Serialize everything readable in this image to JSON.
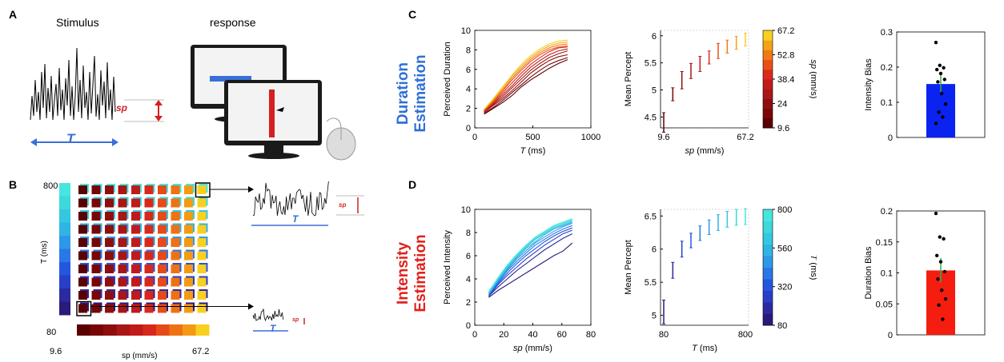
{
  "panel_letters": {
    "a": "A",
    "b": "B",
    "c": "C",
    "d": "D"
  },
  "panelA": {
    "stimulus_title": "Stimulus",
    "response_title": "response",
    "sp_label": "sp",
    "t_label": "T"
  },
  "panelB": {
    "y_axis_label": "T (ms)",
    "x_axis_label": "sp (mm/s)",
    "y_top": "800",
    "y_bottom": "80",
    "x_left": "9.6",
    "x_right": "67.2",
    "sp_label": "sp",
    "t_label": "T"
  },
  "row_labels": {
    "duration_line1": "Duration",
    "duration_line2": "Estimation",
    "intensity_line1": "Intensity",
    "intensity_line2": "Estimation"
  },
  "colors": {
    "duration_title": "#2f6fd6",
    "intensity_title": "#e0201c",
    "arrow_blue": "#3a6fd8",
    "sp_red": "#d42020",
    "bar_blue": "#0a23f0",
    "bar_red": "#f51c10"
  },
  "chart_data": [
    {
      "id": "C-left",
      "type": "line",
      "xlabel": "T (ms)",
      "ylabel": "Perceived Duration",
      "xlim": [
        0,
        1000
      ],
      "ylim": [
        0,
        10
      ],
      "xticks": [
        0,
        500,
        1000
      ],
      "yticks": [
        0,
        2,
        4,
        6,
        8,
        10
      ],
      "x": [
        80,
        160,
        240,
        320,
        400,
        480,
        560,
        640,
        720,
        800
      ],
      "series": [
        {
          "values": [
            1.4,
            2.0,
            2.6,
            3.3,
            4.2,
            4.9,
            5.5,
            6.1,
            6.6,
            7.0
          ],
          "color": "#5a0000"
        },
        {
          "values": [
            1.5,
            2.1,
            2.8,
            3.6,
            4.4,
            5.2,
            5.9,
            6.5,
            6.9,
            7.2
          ],
          "color": "#7a0808"
        },
        {
          "values": [
            1.6,
            2.3,
            3.0,
            3.8,
            4.7,
            5.6,
            6.3,
            6.9,
            7.3,
            7.5
          ],
          "color": "#8c1010"
        },
        {
          "values": [
            1.6,
            2.4,
            3.2,
            4.1,
            5.0,
            5.9,
            6.6,
            7.2,
            7.6,
            7.9
          ],
          "color": "#a81818"
        },
        {
          "values": [
            1.7,
            2.5,
            3.4,
            4.3,
            5.3,
            6.2,
            6.9,
            7.5,
            7.9,
            8.1
          ],
          "color": "#c41a1a"
        },
        {
          "values": [
            1.7,
            2.6,
            3.6,
            4.6,
            5.6,
            6.5,
            7.2,
            7.8,
            8.2,
            8.3
          ],
          "color": "#dc2a1a"
        },
        {
          "values": [
            1.8,
            2.7,
            3.8,
            4.9,
            5.9,
            6.8,
            7.5,
            8.0,
            8.3,
            8.4
          ],
          "color": "#e8501a"
        },
        {
          "values": [
            1.8,
            2.8,
            3.9,
            5.1,
            6.1,
            7.0,
            7.7,
            8.2,
            8.5,
            8.6
          ],
          "color": "#f07a14"
        },
        {
          "values": [
            1.9,
            2.9,
            4.1,
            5.3,
            6.3,
            7.2,
            7.9,
            8.4,
            8.7,
            8.8
          ],
          "color": "#f5a312"
        },
        {
          "values": [
            1.9,
            3.0,
            4.2,
            5.4,
            6.5,
            7.4,
            8.1,
            8.6,
            8.9,
            9.0
          ],
          "color": "#f8d020"
        }
      ]
    },
    {
      "id": "C-middle",
      "type": "errorbar",
      "xlabel": "sp (mm/s)",
      "ylabel": "Mean Percept",
      "ylim": [
        4.3,
        6.1
      ],
      "yticks": [
        4.5,
        5,
        5.5,
        6
      ],
      "x_tick_labels": [
        "9.6",
        "67.2"
      ],
      "values": [
        4.4,
        4.92,
        5.18,
        5.35,
        5.48,
        5.6,
        5.72,
        5.8,
        5.87,
        5.93
      ],
      "err": [
        0.18,
        0.12,
        0.16,
        0.14,
        0.14,
        0.12,
        0.14,
        0.12,
        0.12,
        0.12
      ],
      "colorbar": {
        "label": "sp (mm/s)",
        "ticks": [
          "67.2",
          "52.8",
          "38.4",
          "24",
          "9.6"
        ]
      }
    },
    {
      "id": "C-right",
      "type": "bar",
      "ylabel": "Intensity Bias",
      "ylim": [
        0,
        0.3
      ],
      "yticks": [
        "0",
        "0.1",
        "0.2",
        "0.3"
      ],
      "values": [
        0.152
      ],
      "err": [
        0.025
      ],
      "points": [
        0.27,
        0.205,
        0.198,
        0.193,
        0.182,
        0.165,
        0.158,
        0.125,
        0.095,
        0.072,
        0.058,
        0.04
      ],
      "bar_color": "#0a23f0"
    },
    {
      "id": "D-left",
      "type": "line",
      "xlabel": "sp (mm/s)",
      "ylabel": "Perceived Intensity",
      "xlim": [
        0,
        80
      ],
      "ylim": [
        0,
        10
      ],
      "xticks": [
        0,
        20,
        40,
        60,
        80
      ],
      "yticks": [
        0,
        2,
        4,
        6,
        8,
        10
      ],
      "x": [
        9.6,
        16,
        22.4,
        28.8,
        35.2,
        41.6,
        48,
        54.4,
        60.8,
        67.2
      ],
      "series": [
        {
          "values": [
            2.4,
            3.0,
            3.5,
            4.0,
            4.5,
            5.0,
            5.5,
            6.0,
            6.4,
            7.1
          ],
          "color": "#2a1a7a"
        },
        {
          "values": [
            2.5,
            3.3,
            4.0,
            4.7,
            5.3,
            5.9,
            6.5,
            7.0,
            7.5,
            7.9
          ],
          "color": "#2c2aa0"
        },
        {
          "values": [
            2.5,
            3.5,
            4.3,
            5.0,
            5.7,
            6.3,
            6.9,
            7.4,
            7.9,
            8.2
          ],
          "color": "#2a3fc8"
        },
        {
          "values": [
            2.6,
            3.6,
            4.5,
            5.3,
            6.0,
            6.6,
            7.2,
            7.7,
            8.1,
            8.4
          ],
          "color": "#2456e0"
        },
        {
          "values": [
            2.6,
            3.7,
            4.7,
            5.5,
            6.2,
            6.9,
            7.4,
            7.9,
            8.3,
            8.6
          ],
          "color": "#2a78e8"
        },
        {
          "values": [
            2.7,
            3.8,
            4.8,
            5.7,
            6.4,
            7.1,
            7.6,
            8.1,
            8.5,
            8.8
          ],
          "color": "#2e98e8"
        },
        {
          "values": [
            2.7,
            3.9,
            4.9,
            5.8,
            6.6,
            7.2,
            7.8,
            8.3,
            8.6,
            8.9
          ],
          "color": "#30b4e4"
        },
        {
          "values": [
            2.8,
            4.0,
            5.0,
            5.9,
            6.7,
            7.4,
            7.9,
            8.4,
            8.7,
            9.0
          ],
          "color": "#34c8e0"
        },
        {
          "values": [
            2.8,
            4.0,
            5.1,
            6.0,
            6.8,
            7.5,
            8.0,
            8.5,
            8.8,
            9.1
          ],
          "color": "#3cd8dc"
        },
        {
          "values": [
            2.9,
            4.1,
            5.2,
            6.1,
            6.9,
            7.6,
            8.1,
            8.6,
            8.9,
            9.2
          ],
          "color": "#46e6e0"
        }
      ]
    },
    {
      "id": "D-middle",
      "type": "errorbar",
      "xlabel": "T (ms)",
      "ylabel": "Mean Percept",
      "ylim": [
        4.85,
        6.6
      ],
      "yticks": [
        5,
        5.5,
        6,
        6.5
      ],
      "x_tick_labels": [
        "80",
        "800"
      ],
      "values": [
        5.05,
        5.68,
        6.0,
        6.13,
        6.24,
        6.33,
        6.4,
        6.45,
        6.48,
        6.49
      ],
      "err": [
        0.18,
        0.12,
        0.12,
        0.11,
        0.11,
        0.11,
        0.12,
        0.12,
        0.12,
        0.12
      ],
      "colorbar": {
        "label": "T (ms)",
        "ticks": [
          "800",
          "560",
          "320",
          "80"
        ]
      }
    },
    {
      "id": "D-right",
      "type": "bar",
      "ylabel": "Duration Bias",
      "ylim": [
        0,
        0.2
      ],
      "yticks": [
        "0",
        "0.05",
        "0.1",
        "0.15",
        "0.2"
      ],
      "values": [
        0.104
      ],
      "err": [
        0.02
      ],
      "points": [
        0.196,
        0.158,
        0.155,
        0.128,
        0.118,
        0.102,
        0.09,
        0.072,
        0.058,
        0.048,
        0.025
      ],
      "bar_color": "#f51c10"
    }
  ]
}
